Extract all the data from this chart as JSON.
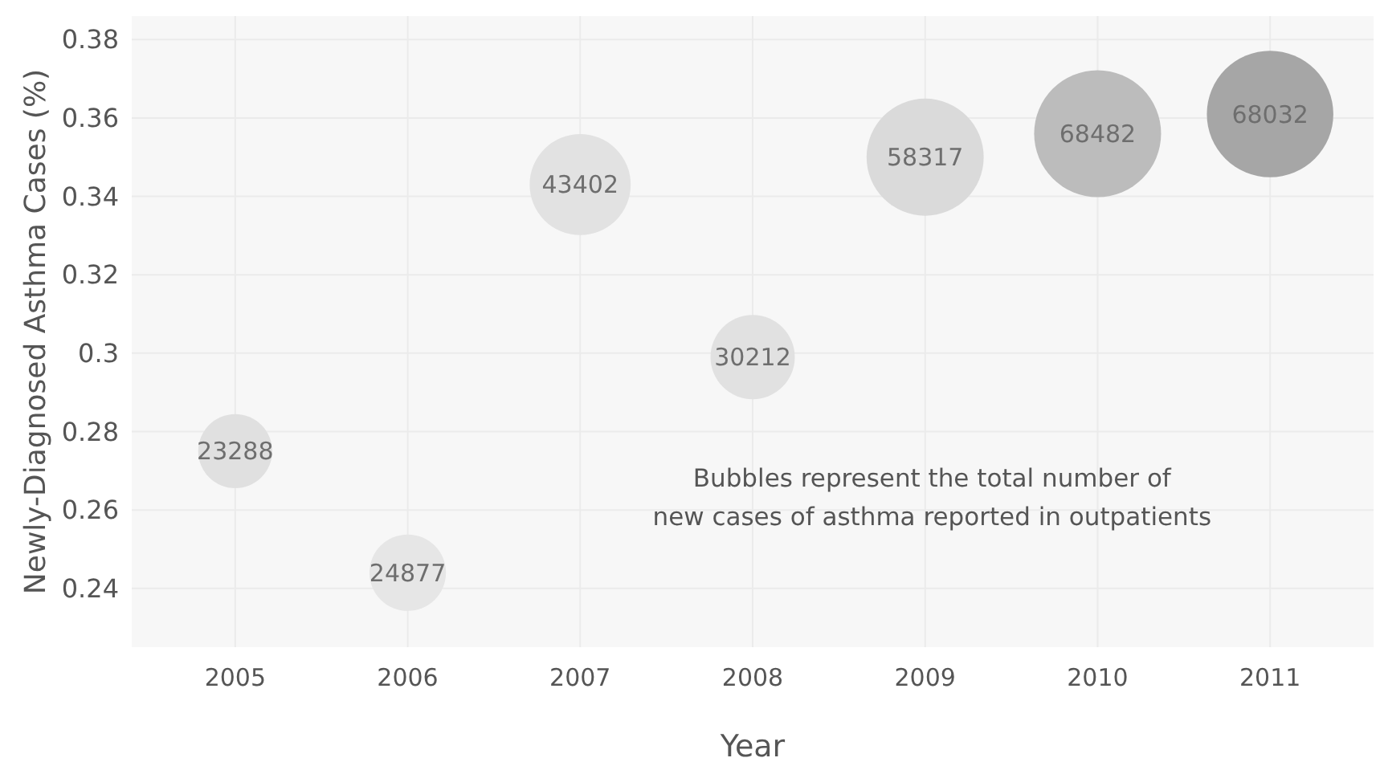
{
  "chart_data": {
    "type": "bubble",
    "xlabel": "Year",
    "ylabel": "Newly-Diagnosed Asthma Cases (%)",
    "x": [
      2005,
      2006,
      2007,
      2008,
      2009,
      2010,
      2011
    ],
    "values": [
      0.275,
      0.244,
      0.343,
      0.299,
      0.35,
      0.356,
      0.361
    ],
    "sizes": [
      23288,
      24877,
      43402,
      30212,
      58317,
      68482,
      68032
    ],
    "value_labels": [
      "23288",
      "24877",
      "43402",
      "30212",
      "58317",
      "68482",
      "68032"
    ],
    "colors": [
      "#e0e0e0",
      "#e6e6e6",
      "#e2e2e2",
      "#e1e1e1",
      "#dadada",
      "#bcbcbc",
      "#a6a6a6"
    ],
    "xlim": [
      2004.4,
      2011.6
    ],
    "ylim": [
      0.225,
      0.386
    ],
    "xticks": [
      2005,
      2006,
      2007,
      2008,
      2009,
      2010,
      2011
    ],
    "yticks": [
      {
        "value": 0.24,
        "label": "0.24"
      },
      {
        "value": 0.26,
        "label": "0.26"
      },
      {
        "value": 0.28,
        "label": "0.28"
      },
      {
        "value": 0.3,
        "label": "0.3"
      },
      {
        "value": 0.32,
        "label": "0.32"
      },
      {
        "value": 0.34,
        "label": "0.34"
      },
      {
        "value": 0.36,
        "label": "0.36"
      },
      {
        "value": 0.38,
        "label": "0.38"
      }
    ],
    "grid": true,
    "annotations": [
      "Bubbles represent the total number of\nnew cases of asthma reported in outpatients"
    ]
  }
}
